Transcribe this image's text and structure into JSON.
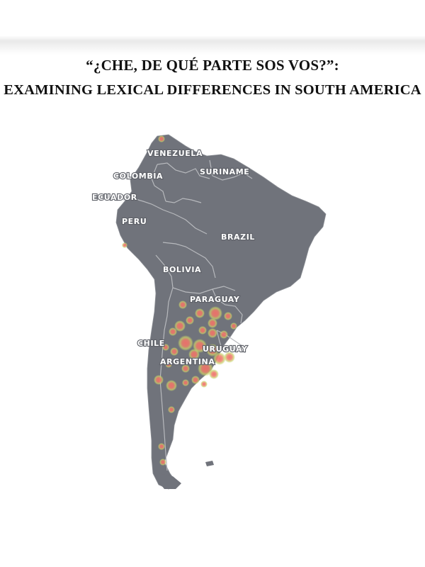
{
  "document": {
    "title_line_1": "“¿CHE, DE QUÉ PARTE SOS VOS?”:",
    "title_line_2": "EXAMINING LEXICAL DIFFERENCES IN SOUTH AMERICA"
  },
  "map": {
    "land_color": "#70737b",
    "border_color": "#b7b9bd",
    "heat_outer_color": "#c9d36b",
    "heat_inner_color": "#ef6f6a",
    "labels": {
      "venezuela": "VENEZUELA",
      "suriname": "SURINAME",
      "colombia": "COLOMBIA",
      "ecuador": "ECUADOR",
      "peru": "PERU",
      "brazil": "BRAZIL",
      "bolivia": "BOLIVIA",
      "paraguay": "PARAGUAY",
      "chile": "CHILE",
      "uruguay": "URUGUAY",
      "argentina": "ARGENTINA"
    }
  }
}
